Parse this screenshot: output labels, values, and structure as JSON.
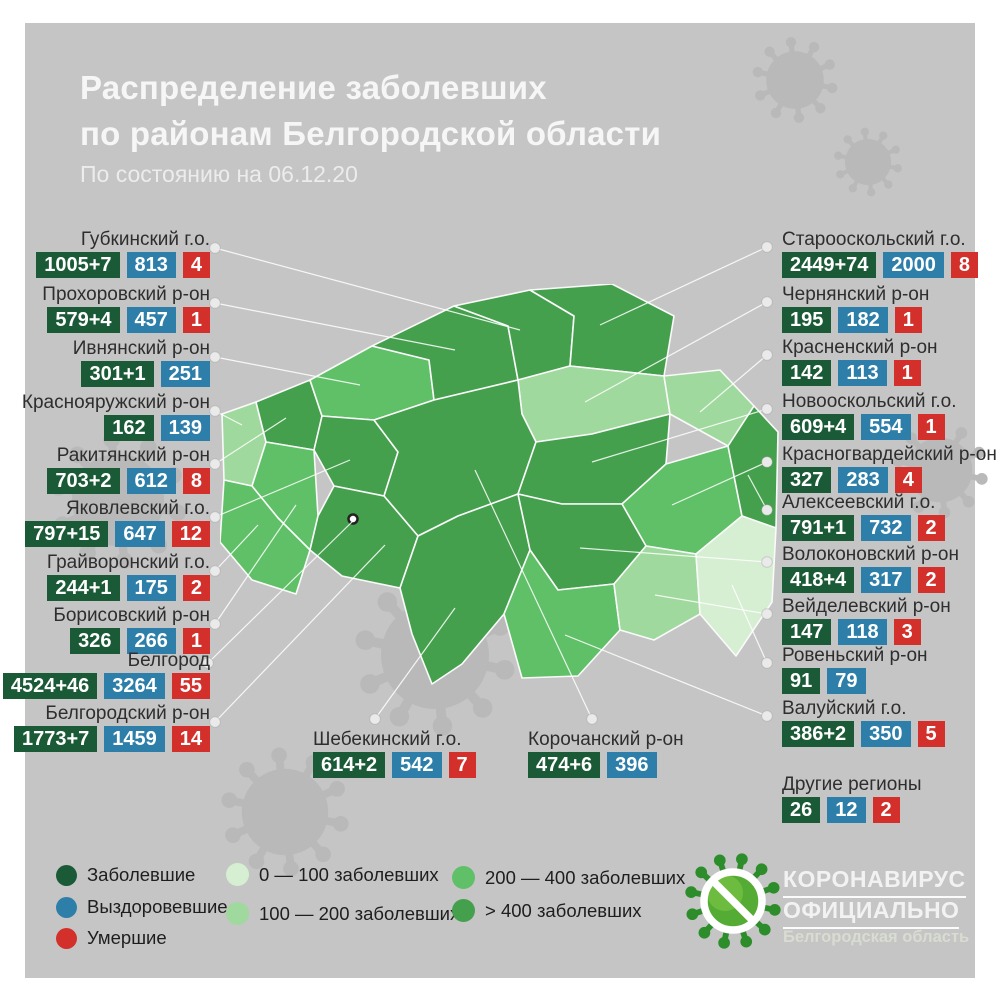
{
  "title": {
    "line1": "Распределение заболевших",
    "line2": "по районам Белгородской области",
    "subtitle": "По состоянию на 06.12.20"
  },
  "districts": {
    "left": [
      {
        "name": "Губкинский г.о.",
        "infected": "1005+7",
        "recovered": "813",
        "deaths": "4"
      },
      {
        "name": "Прохоровский р-он",
        "infected": "579+4",
        "recovered": "457",
        "deaths": "1"
      },
      {
        "name": "Ивнянский р-он",
        "infected": "301+1",
        "recovered": "251",
        "deaths": null
      },
      {
        "name": "Краснояружский р-он",
        "infected": "162",
        "recovered": "139",
        "deaths": null
      },
      {
        "name": "Ракитянский р-он",
        "infected": "703+2",
        "recovered": "612",
        "deaths": "8"
      },
      {
        "name": "Яковлевский г.о.",
        "infected": "797+15",
        "recovered": "647",
        "deaths": "12"
      },
      {
        "name": "Грайворонский г.о.",
        "infected": "244+1",
        "recovered": "175",
        "deaths": "2"
      },
      {
        "name": "Борисовский р-он",
        "infected": "326",
        "recovered": "266",
        "deaths": "1"
      },
      {
        "name": "Белгород",
        "infected": "4524+46",
        "recovered": "3264",
        "deaths": "55"
      },
      {
        "name": "Белгородский р-он",
        "infected": "1773+7",
        "recovered": "1459",
        "deaths": "14"
      }
    ],
    "bottom": [
      {
        "name": "Шебекинский г.о.",
        "infected": "614+2",
        "recovered": "542",
        "deaths": "7"
      },
      {
        "name": "Корочанский р-он",
        "infected": "474+6",
        "recovered": "396",
        "deaths": null
      }
    ],
    "right": [
      {
        "name": "Старооскольский г.о.",
        "infected": "2449+74",
        "recovered": "2000",
        "deaths": "8"
      },
      {
        "name": "Чернянский р-он",
        "infected": "195",
        "recovered": "182",
        "deaths": "1"
      },
      {
        "name": "Красненский р-он",
        "infected": "142",
        "recovered": "113",
        "deaths": "1"
      },
      {
        "name": "Новооскольский г.о.",
        "infected": "609+4",
        "recovered": "554",
        "deaths": "1"
      },
      {
        "name": "Красногвардейский р-он",
        "infected": "327",
        "recovered": "283",
        "deaths": "4"
      },
      {
        "name": "Алексеевский г.о.",
        "infected": "791+1",
        "recovered": "732",
        "deaths": "2"
      },
      {
        "name": "Волоконовский р-он",
        "infected": "418+4",
        "recovered": "317",
        "deaths": "2"
      },
      {
        "name": "Вейделевский р-он",
        "infected": "147",
        "recovered": "118",
        "deaths": "3"
      },
      {
        "name": "Ровеньский р-он",
        "infected": "91",
        "recovered": "79",
        "deaths": null
      },
      {
        "name": "Валуйский г.о.",
        "infected": "386+2",
        "recovered": "350",
        "deaths": "5"
      },
      {
        "name": "Другие регионы",
        "infected": "26",
        "recovered": "12",
        "deaths": "2"
      }
    ]
  },
  "legend": {
    "markers": [
      {
        "label": "Заболевшие",
        "color": "#1b5a36"
      },
      {
        "label": "Выздоровевшие",
        "color": "#2d7fa9"
      },
      {
        "label": "Умершие",
        "color": "#d3302c"
      }
    ],
    "ranges": [
      {
        "label": "0 — 100 заболевших",
        "color": "#d6efd2"
      },
      {
        "label": "100 — 200 заболевших",
        "color": "#9fd99d"
      },
      {
        "label": "200 — 400 заболевших",
        "color": "#5fc067"
      },
      {
        "label": "> 400 заболевших",
        "color": "#45a04e"
      }
    ]
  },
  "logo": {
    "line1": "КОРОНАВИРУС",
    "line2": "ОФИЦИАЛЬНО",
    "line3": "Белгородская область"
  },
  "colors": {
    "background": "#c5c5c5",
    "watermark": "#b9b9b9",
    "infected": "#1b5a36",
    "recovered": "#2d7fa9",
    "deaths": "#d3302c",
    "range1": "#d6efd2",
    "range2": "#9fd99d",
    "range3": "#5fc067",
    "range4": "#45a04e"
  }
}
